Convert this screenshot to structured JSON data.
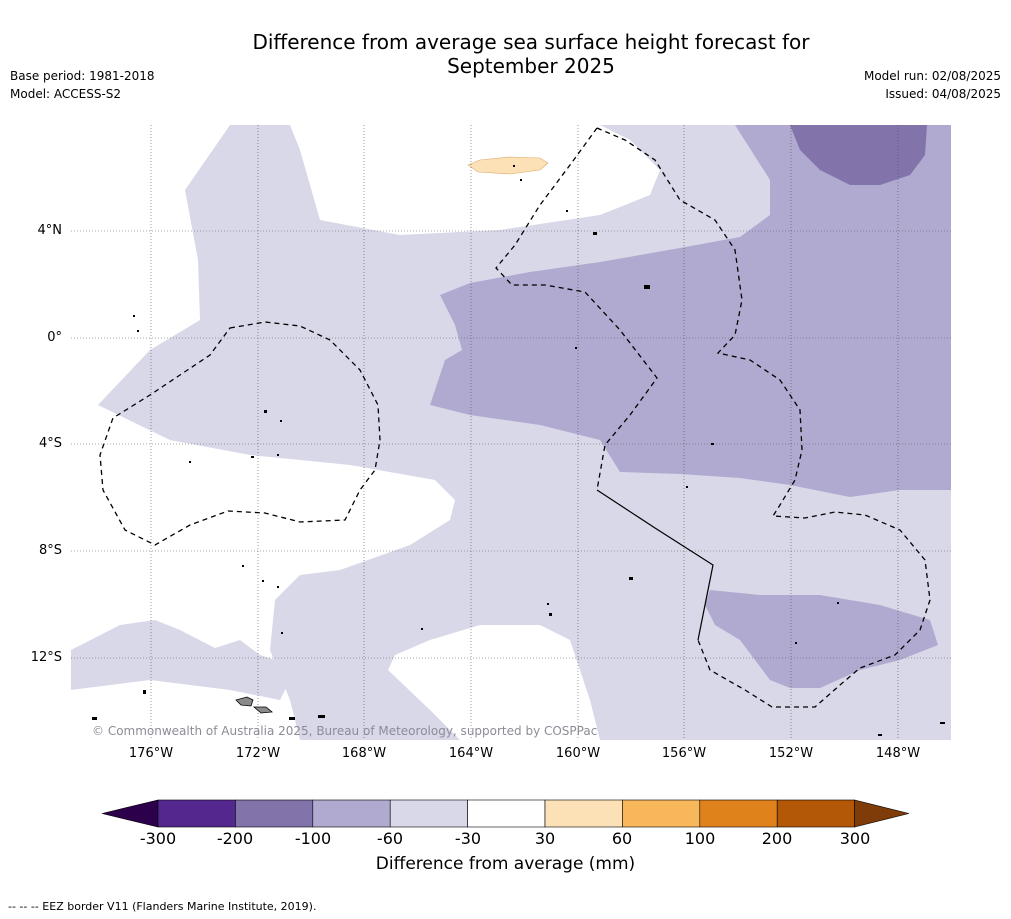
{
  "title_line1": "Difference from average sea surface height forecast for",
  "title_line2": "September 2025",
  "base_period": "Base period: 1981-2018",
  "model": "Model: ACCESS-S2",
  "model_run": "Model run: 02/08/2025",
  "issued": "Issued: 04/08/2025",
  "map": {
    "lat_ticks": [
      "4°N",
      "0°",
      "4°S",
      "8°S",
      "12°S"
    ],
    "lon_ticks": [
      "176°W",
      "172°W",
      "168°W",
      "164°W",
      "160°W",
      "156°W",
      "152°W",
      "148°W"
    ],
    "copyright": "© Commonwealth of Australia 2025, Bureau of Meteorology, supported by COSPPac",
    "fill_colors": {
      "-60_to_-30": "#d8d8e9",
      "-100_to_-60": "#b0aad0",
      "-200_to_-100": "#8273ab",
      "30_to_60": "#fde1b6"
    }
  },
  "colorbar": {
    "ticks": [
      "-300",
      "-200",
      "-100",
      "-60",
      "-30",
      "30",
      "60",
      "100",
      "200",
      "300"
    ],
    "colors": [
      "#54278f",
      "#8273ab",
      "#b0aad0",
      "#d8d8e9",
      "#ffffff",
      "#fde1b6",
      "#f9b75c",
      "#e0821b",
      "#b35806"
    ],
    "under_color": "#2d004b",
    "over_color": "#7f3b08",
    "label": "Difference from average (mm)"
  },
  "legend_note": "--  --  -- EEZ border V11 (Flanders Marine Institute, 2019)."
}
